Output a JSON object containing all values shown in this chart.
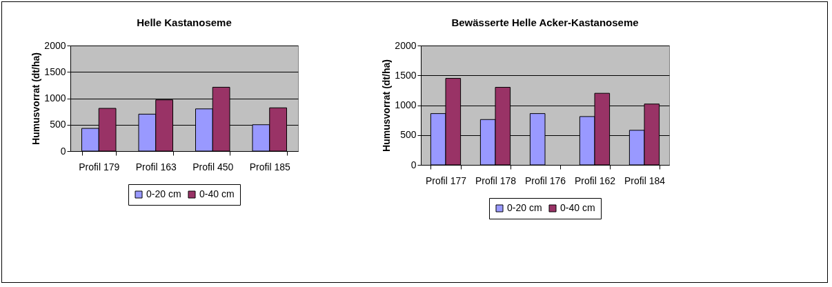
{
  "chart_data": [
    {
      "type": "bar",
      "title": "Helle Kastanoseme",
      "ylabel": "Humusvorrat (dt/ha)",
      "categories": [
        "Profil 179",
        "Profil 163",
        "Profil 450",
        "Profil 185"
      ],
      "ylim": [
        0,
        2000
      ],
      "yticks": [
        0,
        500,
        1000,
        1500,
        2000
      ],
      "grid": "y",
      "legend": "bottom",
      "series": [
        {
          "name": "0-20 cm",
          "color": "#9999ff",
          "values": [
            430,
            700,
            800,
            500
          ]
        },
        {
          "name": "0-40 cm",
          "color": "#993366",
          "values": [
            810,
            970,
            1210,
            820
          ]
        }
      ]
    },
    {
      "type": "bar",
      "title": "Bewässerte Helle Acker-Kastanoseme",
      "ylabel": "Humusvorrat (dt/ha)",
      "categories": [
        "Profil 177",
        "Profil 178",
        "Profil 176",
        "Profil 162",
        "Profil 184"
      ],
      "ylim": [
        0,
        2000
      ],
      "yticks": [
        0,
        500,
        1000,
        1500,
        2000
      ],
      "grid": "y",
      "legend": "bottom",
      "series": [
        {
          "name": "0-20 cm",
          "color": "#9999ff",
          "values": [
            860,
            760,
            860,
            810,
            580
          ]
        },
        {
          "name": "0-40 cm",
          "color": "#993366",
          "values": [
            1450,
            1300,
            null,
            1200,
            1020
          ]
        }
      ]
    }
  ]
}
